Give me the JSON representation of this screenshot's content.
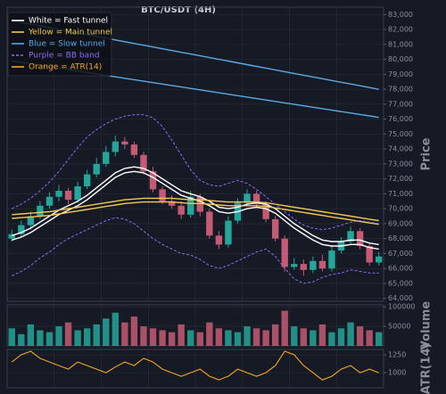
{
  "chart_data": [
    {
      "type": "candlestick",
      "title": "BTC/USDT (4H)",
      "ylabel": "Price",
      "up_color": "#26a69a",
      "down_color": "#c45a73",
      "grid": true,
      "legend": "upper left",
      "ylim": [
        63800,
        83500
      ],
      "yticks": [
        {
          "value": 64000,
          "label": "64,000"
        },
        {
          "value": 65000,
          "label": "65,000"
        },
        {
          "value": 66000,
          "label": "66,000"
        },
        {
          "value": 67000,
          "label": "67,000"
        },
        {
          "value": 68000,
          "label": "68,000"
        },
        {
          "value": 69000,
          "label": "69,000"
        },
        {
          "value": 70000,
          "label": "70,000"
        },
        {
          "value": 71000,
          "label": "71,000"
        },
        {
          "value": 72000,
          "label": "72,000"
        },
        {
          "value": 73000,
          "label": "73,000"
        },
        {
          "value": 74000,
          "label": "74,000"
        },
        {
          "value": 75000,
          "label": "75,000"
        },
        {
          "value": 76000,
          "label": "76,000"
        },
        {
          "value": 77000,
          "label": "77,000"
        },
        {
          "value": 78000,
          "label": "78,000"
        },
        {
          "value": 79000,
          "label": "79,000"
        },
        {
          "value": 80000,
          "label": "80,000"
        },
        {
          "value": 81000,
          "label": "81,000"
        },
        {
          "value": 82000,
          "label": "82,000"
        },
        {
          "value": 83000,
          "label": "83,000"
        }
      ],
      "open": [
        68000,
        68300,
        68900,
        69500,
        70200,
        70800,
        71200,
        70600,
        71500,
        72300,
        73000,
        73800,
        74500,
        74300,
        73600,
        72500,
        71300,
        70500,
        70200,
        69600,
        70800,
        69800,
        68200,
        67600,
        69200,
        70400,
        71000,
        70300,
        69300,
        68000,
        66100,
        66300,
        65900,
        66500,
        66000,
        67200,
        67800,
        68500,
        67500,
        66400
      ],
      "high": [
        68600,
        69200,
        69800,
        70500,
        71100,
        71600,
        71400,
        71800,
        72600,
        73400,
        74200,
        74900,
        74800,
        74500,
        73800,
        72800,
        71500,
        70900,
        70500,
        71200,
        71000,
        70000,
        68500,
        69500,
        70700,
        71300,
        71200,
        70500,
        69500,
        68200,
        66700,
        66600,
        66800,
        66900,
        67500,
        68100,
        68800,
        68700,
        67700,
        67100
      ],
      "low": [
        67800,
        68100,
        68600,
        69300,
        70000,
        70500,
        70300,
        70400,
        71300,
        72100,
        72800,
        73500,
        74000,
        73400,
        72300,
        71100,
        70300,
        70000,
        69300,
        69400,
        69500,
        68000,
        67300,
        67400,
        69000,
        70200,
        70100,
        69100,
        67800,
        65800,
        65900,
        65500,
        65700,
        65800,
        65800,
        67000,
        67600,
        67300,
        66200,
        66200
      ],
      "close": [
        68300,
        68900,
        69500,
        70200,
        70800,
        71200,
        70600,
        71500,
        72300,
        73000,
        73800,
        74500,
        74300,
        73600,
        72500,
        71300,
        70500,
        70200,
        69600,
        70800,
        69800,
        68200,
        67600,
        69200,
        70400,
        71000,
        70300,
        69300,
        68000,
        66100,
        66300,
        65900,
        66500,
        66000,
        67200,
        67800,
        68500,
        67500,
        66400,
        66800
      ],
      "series": [
        {
          "name": "White = Fast tunnel",
          "color": "#ffffff",
          "dash": false,
          "upper": [
            68200,
            68400,
            68700,
            69100,
            69500,
            69900,
            70200,
            70500,
            70900,
            71400,
            71900,
            72400,
            72700,
            72800,
            72700,
            72400,
            72000,
            71600,
            71200,
            71000,
            70800,
            70500,
            70100,
            70000,
            70100,
            70300,
            70400,
            70300,
            70000,
            69500,
            69000,
            68600,
            68200,
            67900,
            67800,
            67800,
            67900,
            67900,
            67700,
            67600
          ],
          "lower": [
            67900,
            68100,
            68400,
            68800,
            69200,
            69600,
            69900,
            70200,
            70600,
            71100,
            71600,
            72100,
            72400,
            72500,
            72400,
            72100,
            71700,
            71300,
            70900,
            70700,
            70500,
            70200,
            69800,
            69700,
            69800,
            70000,
            70100,
            70000,
            69700,
            69200,
            68700,
            68300,
            67900,
            67600,
            67500,
            67500,
            67600,
            67600,
            67400,
            67300
          ]
        },
        {
          "name": "Yellow = Main tunnel",
          "color": "#f2c94c",
          "dash": false,
          "upper": [
            69600,
            69650,
            69700,
            69750,
            69800,
            69900,
            70000,
            70100,
            70200,
            70300,
            70400,
            70500,
            70600,
            70650,
            70700,
            70700,
            70700,
            70700,
            70650,
            70600,
            70600,
            70550,
            70500,
            70450,
            70450,
            70450,
            70450,
            70400,
            70300,
            70200,
            70100,
            70000,
            69900,
            69800,
            69700,
            69600,
            69500,
            69400,
            69300,
            69200
          ],
          "lower": [
            69350,
            69400,
            69450,
            69500,
            69550,
            69650,
            69750,
            69850,
            69950,
            70050,
            70150,
            70250,
            70350,
            70400,
            70450,
            70450,
            70450,
            70450,
            70400,
            70350,
            70350,
            70300,
            70250,
            70200,
            70200,
            70200,
            70200,
            70150,
            70050,
            69950,
            69850,
            69750,
            69650,
            69550,
            69450,
            69350,
            69250,
            69150,
            69050,
            68950
          ]
        },
        {
          "name": "Blue = Slow tunnel",
          "color": "#5aa9e6",
          "dash": false,
          "upper": [
            82600,
            82482,
            82364,
            82246,
            82128,
            82010,
            81892,
            81774,
            81656,
            81538,
            81420,
            81302,
            81184,
            81066,
            80948,
            80830,
            80712,
            80594,
            80476,
            80358,
            80240,
            80122,
            80004,
            79886,
            79768,
            79650,
            79532,
            79414,
            79296,
            79178,
            79060,
            78942,
            78824,
            78706,
            78588,
            78470,
            78352,
            78234,
            78116,
            77998
          ],
          "lower": [
            79900,
            79803,
            79706,
            79609,
            79512,
            79415,
            79318,
            79221,
            79124,
            79027,
            78930,
            78833,
            78736,
            78639,
            78542,
            78445,
            78348,
            78251,
            78154,
            78057,
            77960,
            77863,
            77766,
            77669,
            77572,
            77475,
            77378,
            77281,
            77184,
            77087,
            76990,
            76893,
            76796,
            76699,
            76602,
            76505,
            76408,
            76311,
            76214,
            76117
          ]
        },
        {
          "name": "Purple = BB band",
          "color": "#8e6cf0",
          "dash": true,
          "upper": [
            70000,
            70300,
            70700,
            71200,
            71800,
            72500,
            73300,
            74100,
            74800,
            75300,
            75700,
            76000,
            76200,
            76300,
            76300,
            76100,
            75500,
            74600,
            73600,
            72600,
            71900,
            71600,
            71500,
            71700,
            71900,
            71700,
            71300,
            70800,
            70300,
            69800,
            69300,
            68900,
            68700,
            68600,
            68700,
            68900,
            69100,
            69200,
            69100,
            69000
          ],
          "lower": [
            65500,
            65800,
            66200,
            66700,
            67100,
            67600,
            68000,
            68300,
            68600,
            68900,
            69200,
            69400,
            69300,
            69000,
            68500,
            68000,
            67600,
            67300,
            67000,
            66900,
            66600,
            66200,
            66000,
            66200,
            66500,
            66800,
            67100,
            67300,
            66800,
            66000,
            65300,
            65000,
            65100,
            65400,
            65600,
            65700,
            65900,
            65800,
            65700,
            65700
          ]
        }
      ]
    },
    {
      "type": "bar",
      "ylabel": "Volume",
      "ylim": [
        0,
        105000
      ],
      "yticks": [
        50000,
        100000
      ],
      "grid": true,
      "values": [
        45000,
        30000,
        55000,
        40000,
        35000,
        50000,
        60000,
        40000,
        45000,
        55000,
        70000,
        85000,
        60000,
        75000,
        50000,
        45000,
        40000,
        35000,
        55000,
        40000,
        35000,
        60000,
        45000,
        40000,
        35000,
        50000,
        45000,
        40000,
        55000,
        90000,
        50000,
        45000,
        40000,
        55000,
        35000,
        45000,
        60000,
        50000,
        40000,
        35000
      ]
    },
    {
      "type": "line",
      "ylabel": "ATR(14)",
      "ylim": [
        790,
        1325
      ],
      "yticks": [
        1000,
        1250
      ],
      "grid": true,
      "series": [
        {
          "name": "Orange = ATR(14)",
          "color": "#f5a623",
          "values": [
            1150,
            1250,
            1300,
            1200,
            1150,
            1100,
            1050,
            1150,
            1100,
            1050,
            1000,
            1080,
            1150,
            1100,
            1200,
            1150,
            1050,
            1000,
            950,
            1000,
            1050,
            950,
            900,
            950,
            1050,
            1000,
            950,
            1000,
            1100,
            1300,
            1250,
            1100,
            1000,
            900,
            950,
            1050,
            1100,
            1000,
            1050,
            1000
          ]
        }
      ]
    }
  ]
}
